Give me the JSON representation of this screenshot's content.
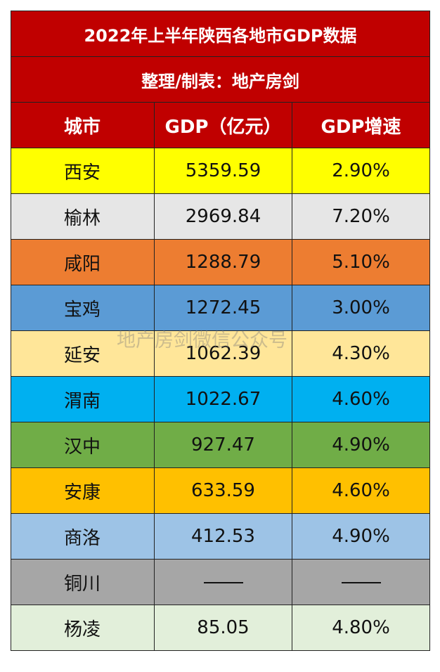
{
  "title": "2022年上半年陕西各地市GDP数据",
  "subtitle": "整理/制表：地产房剑",
  "headers": {
    "city": "城市",
    "gdp": "GDP（亿元）",
    "growth": "GDP增速"
  },
  "rows": [
    {
      "city": "西安",
      "gdp": "5359.59",
      "growth": "2.90%",
      "color": "#ffff00"
    },
    {
      "city": "榆林",
      "gdp": "2969.84",
      "growth": "7.20%",
      "color": "#e6e6e6"
    },
    {
      "city": "咸阳",
      "gdp": "1288.79",
      "growth": "5.10%",
      "color": "#ed7d31"
    },
    {
      "city": "宝鸡",
      "gdp": "1272.45",
      "growth": "3.00%",
      "color": "#5b9bd5"
    },
    {
      "city": "延安",
      "gdp": "1062.39",
      "growth": "4.30%",
      "color": "#ffe699"
    },
    {
      "city": "渭南",
      "gdp": "1022.67",
      "growth": "4.60%",
      "color": "#00b0f0"
    },
    {
      "city": "汉中",
      "gdp": "927.47",
      "growth": "4.90%",
      "color": "#70ad47"
    },
    {
      "city": "安康",
      "gdp": "633.59",
      "growth": "4.60%",
      "color": "#ffc000"
    },
    {
      "city": "商洛",
      "gdp": "412.53",
      "growth": "4.90%",
      "color": "#9dc3e6"
    },
    {
      "city": "铜川",
      "gdp": "",
      "growth": "",
      "color": "#a6a6a6",
      "missing": true
    },
    {
      "city": "杨凌",
      "gdp": "85.05",
      "growth": "4.80%",
      "color": "#e2efda"
    }
  ],
  "watermark": "地产房剑微信公众号",
  "colors": {
    "header_bg": "#c00000",
    "header_text": "#ffffff",
    "border": "#222222"
  }
}
